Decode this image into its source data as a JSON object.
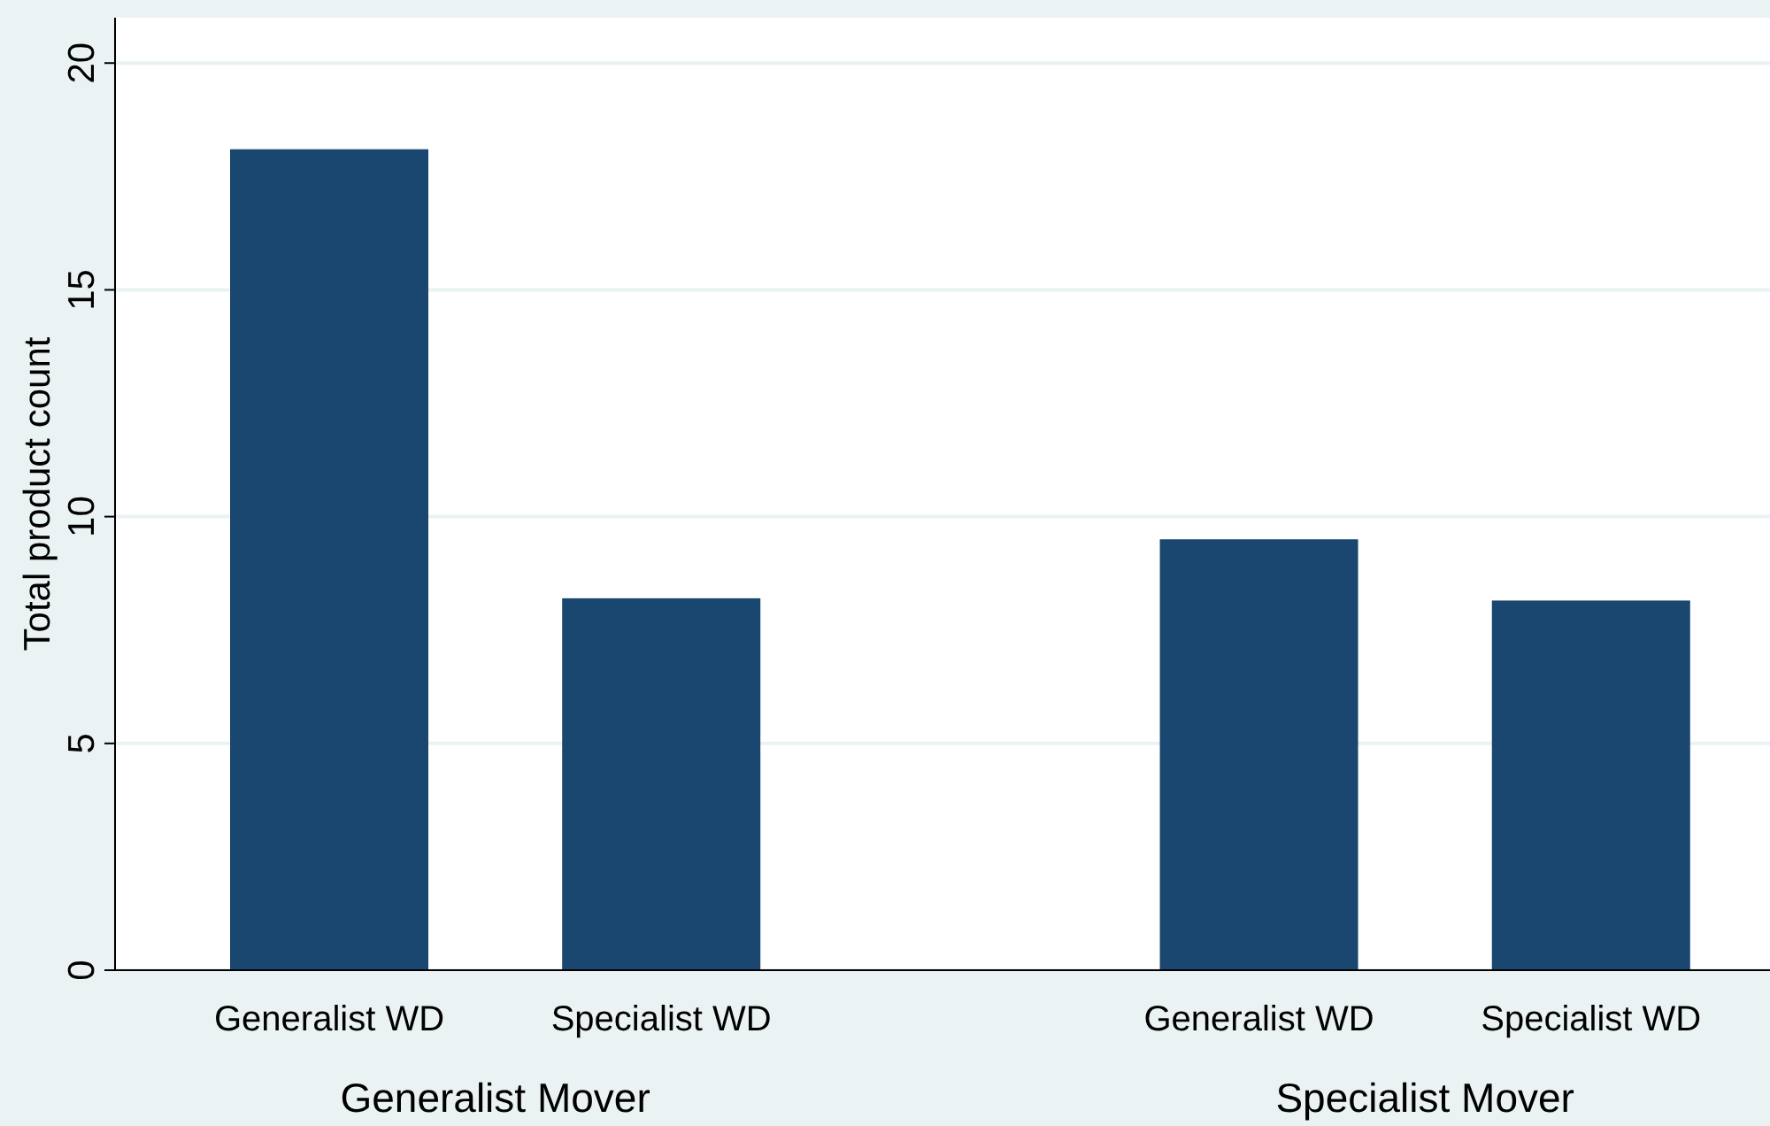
{
  "chart_data": {
    "type": "bar",
    "ylabel": "Total product count",
    "categories": [
      "Generalist WD",
      "Specialist WD",
      "Generalist WD",
      "Specialist WD"
    ],
    "values": [
      18.1,
      8.2,
      9.5,
      8.15
    ],
    "color": "#1a476f",
    "ylim": [
      0,
      21
    ],
    "yticks": [
      0,
      5,
      10,
      15,
      20
    ],
    "grid": "y",
    "annotations": [
      "Generalist Mover",
      "Specialist Mover"
    ]
  }
}
